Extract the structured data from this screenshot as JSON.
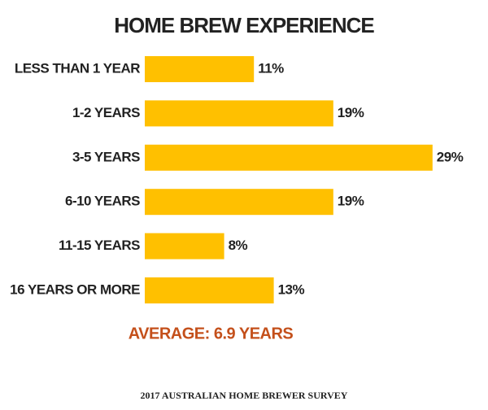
{
  "chart_data": {
    "type": "hbar",
    "title": "HOME BREW EXPERIENCE",
    "categories": [
      "LESS THAN 1 YEAR",
      "1-2 YEARS",
      "3-5 YEARS",
      "6-10 YEARS",
      "11-15 YEARS",
      "16 YEARS OR MORE"
    ],
    "values": [
      11,
      19,
      29,
      19,
      8,
      13
    ],
    "value_labels": [
      "11%",
      "19%",
      "29%",
      "19%",
      "8%",
      "13%"
    ],
    "color": "#ffc000",
    "annotation": "AVERAGE: 6.9 YEARS",
    "annotation_color": "#c4501b",
    "source": "2017 AUSTRALIAN HOME BREWER SURVEY"
  }
}
